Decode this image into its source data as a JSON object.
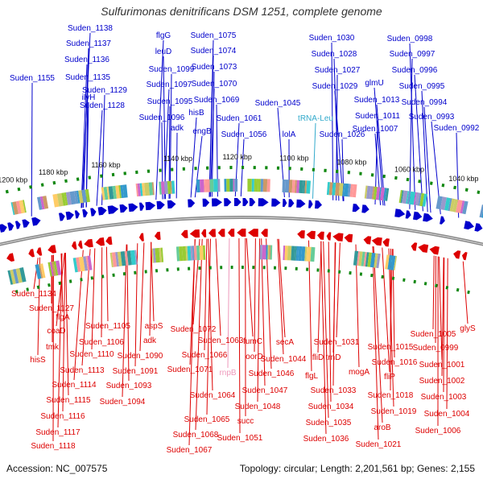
{
  "title": "Sulfurimonas denitrificans DSM 1251, complete genome",
  "footer": {
    "accession": "Accession: NC_007575",
    "summary": "Topology: circular; Length: 2,201,561 bp; Genes: 2,155"
  },
  "colors": {
    "forward": "#0000cc",
    "reverse": "#dd0000",
    "trna": "#33aacc",
    "rrna": "#ee99bb",
    "backbone": "#888888",
    "tick": "#118811"
  },
  "ticks": [
    "1200 kbp",
    "1180 kbp",
    "1160 kbp",
    "1140 kbp",
    "1120 kbp",
    "1100 kbp",
    "1080 kbp",
    "1060 kbp",
    "1040 kbp"
  ],
  "top_labels": [
    "Suden_1155",
    "Suden_1138",
    "Suden_1137",
    "Suden_1136",
    "Suden_1135",
    "ilvH",
    "Suden_1129",
    "Suden_1128",
    "flgG",
    "leuD",
    "Suden_1099",
    "Suden_1097",
    "Suden_1095",
    "Suden_1096",
    "adk",
    "Suden_1075",
    "Suden_1074",
    "Suden_1073",
    "Suden_1070",
    "Suden_1069",
    "hisB",
    "engB",
    "Suden_1061",
    "Suden_1056",
    "Suden_1045",
    "lolA",
    "tRNA-Leu",
    "Suden_1030",
    "Suden_1028",
    "Suden_1027",
    "Suden_1029",
    "Suden_1026",
    "glmU",
    "Suden_1013",
    "Suden_1011",
    "Suden_1007",
    "Suden_0998",
    "Suden_0997",
    "Suden_0996",
    "Suden_0995",
    "Suden_0994",
    "Suden_0993",
    "Suden_0992"
  ],
  "bottom_labels": [
    "Suden_1134",
    "Suden_1127",
    "flgA",
    "coaD",
    "tmk",
    "hisS",
    "Suden_1105",
    "Suden_1106",
    "Suden_1110",
    "Suden_1113",
    "Suden_1114",
    "Suden_1115",
    "Suden_1116",
    "Suden_1117",
    "Suden_1118",
    "aspS",
    "adk",
    "Suden_1090",
    "Suden_1091",
    "Suden_1093",
    "Suden_1094",
    "Suden_1072",
    "Suden_1063",
    "Suden_1066",
    "Suden_1071",
    "rnpB",
    "fumC",
    "oorD",
    "Suden_1046",
    "Suden_1047",
    "Suden_1048",
    "Suden_1064",
    "Suden_1065",
    "succ",
    "Suden_1068",
    "Suden_1067",
    "Suden_1051",
    "secA",
    "Suden_1044",
    "Suden_1031",
    "fliD",
    "trnD",
    "flgL",
    "Suden_1033",
    "Suden_1034",
    "Suden_1035",
    "Suden_1036",
    "mogA",
    "Suden_1015",
    "Suden_1016",
    "fliP",
    "Suden_1018",
    "Suden_1019",
    "aroB",
    "Suden_1021",
    "Suden_1005",
    "glyS",
    "Suden_0999",
    "Suden_1001",
    "Suden_1002",
    "Suden_1003",
    "Suden_1004",
    "Suden_1006"
  ]
}
